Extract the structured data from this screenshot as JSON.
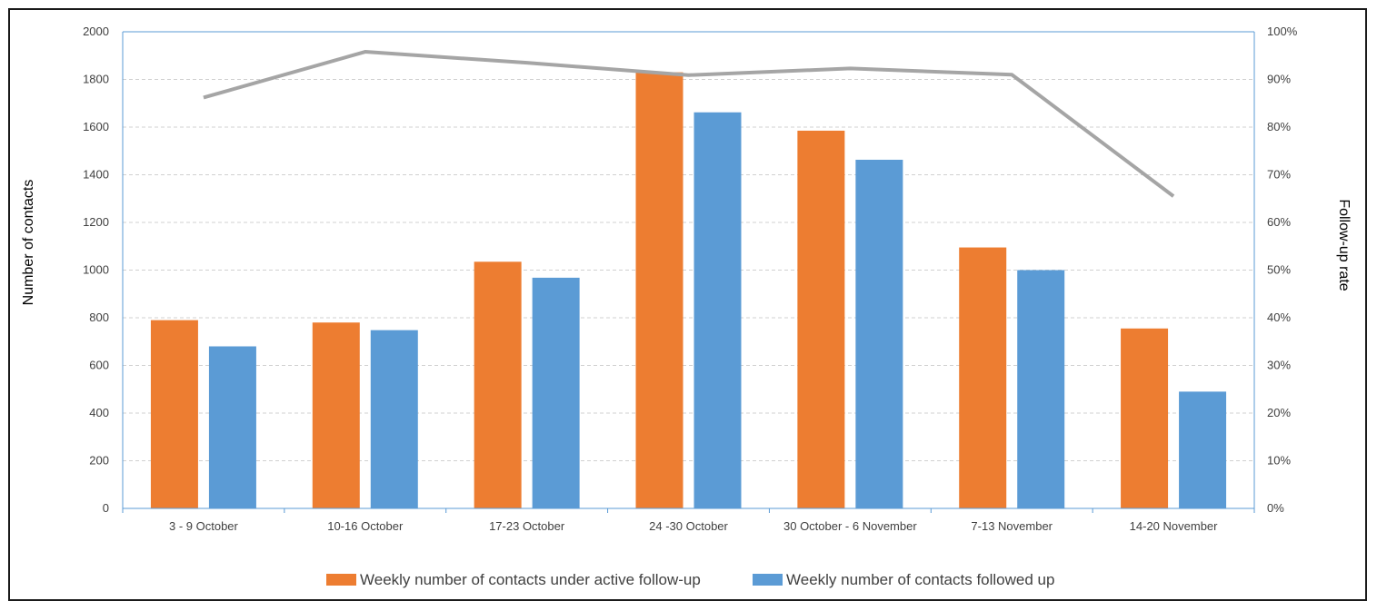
{
  "chart_data": {
    "type": "bar",
    "title": "",
    "categories": [
      "3 - 9 October",
      "10-16 October",
      "17-23 October",
      "24 -30 October",
      "30 October - 6 November",
      "7-13 November",
      "14-20 November"
    ],
    "series": [
      {
        "name": "Weekly number of contacts under active follow-up",
        "type": "bar",
        "axis": "left",
        "color": "#ed7d31",
        "values": [
          790,
          780,
          1035,
          1830,
          1585,
          1095,
          755
        ]
      },
      {
        "name": "Weekly number of contacts followed up",
        "type": "bar",
        "axis": "left",
        "color": "#5b9bd5",
        "values": [
          680,
          748,
          968,
          1662,
          1463,
          1000,
          490
        ]
      },
      {
        "name": "",
        "type": "line",
        "axis": "right",
        "color": "#a5a5a5",
        "values": [
          0.862,
          0.958,
          0.935,
          0.909,
          0.923,
          0.91,
          0.655
        ]
      }
    ],
    "ylabel": "Number of contacts",
    "y2label": "Follow-up rate",
    "ylim": [
      0,
      2000
    ],
    "y2lim": [
      0,
      1
    ],
    "yticks": [
      "0",
      "200",
      "400",
      "600",
      "800",
      "1000",
      "1200",
      "1400",
      "1600",
      "1800",
      "2000"
    ],
    "y2ticks": [
      "0%",
      "10%",
      "20%",
      "30%",
      "40%",
      "50%",
      "60%",
      "70%",
      "80%",
      "90%",
      "100%"
    ],
    "grid": true,
    "legend_position": "bottom"
  }
}
